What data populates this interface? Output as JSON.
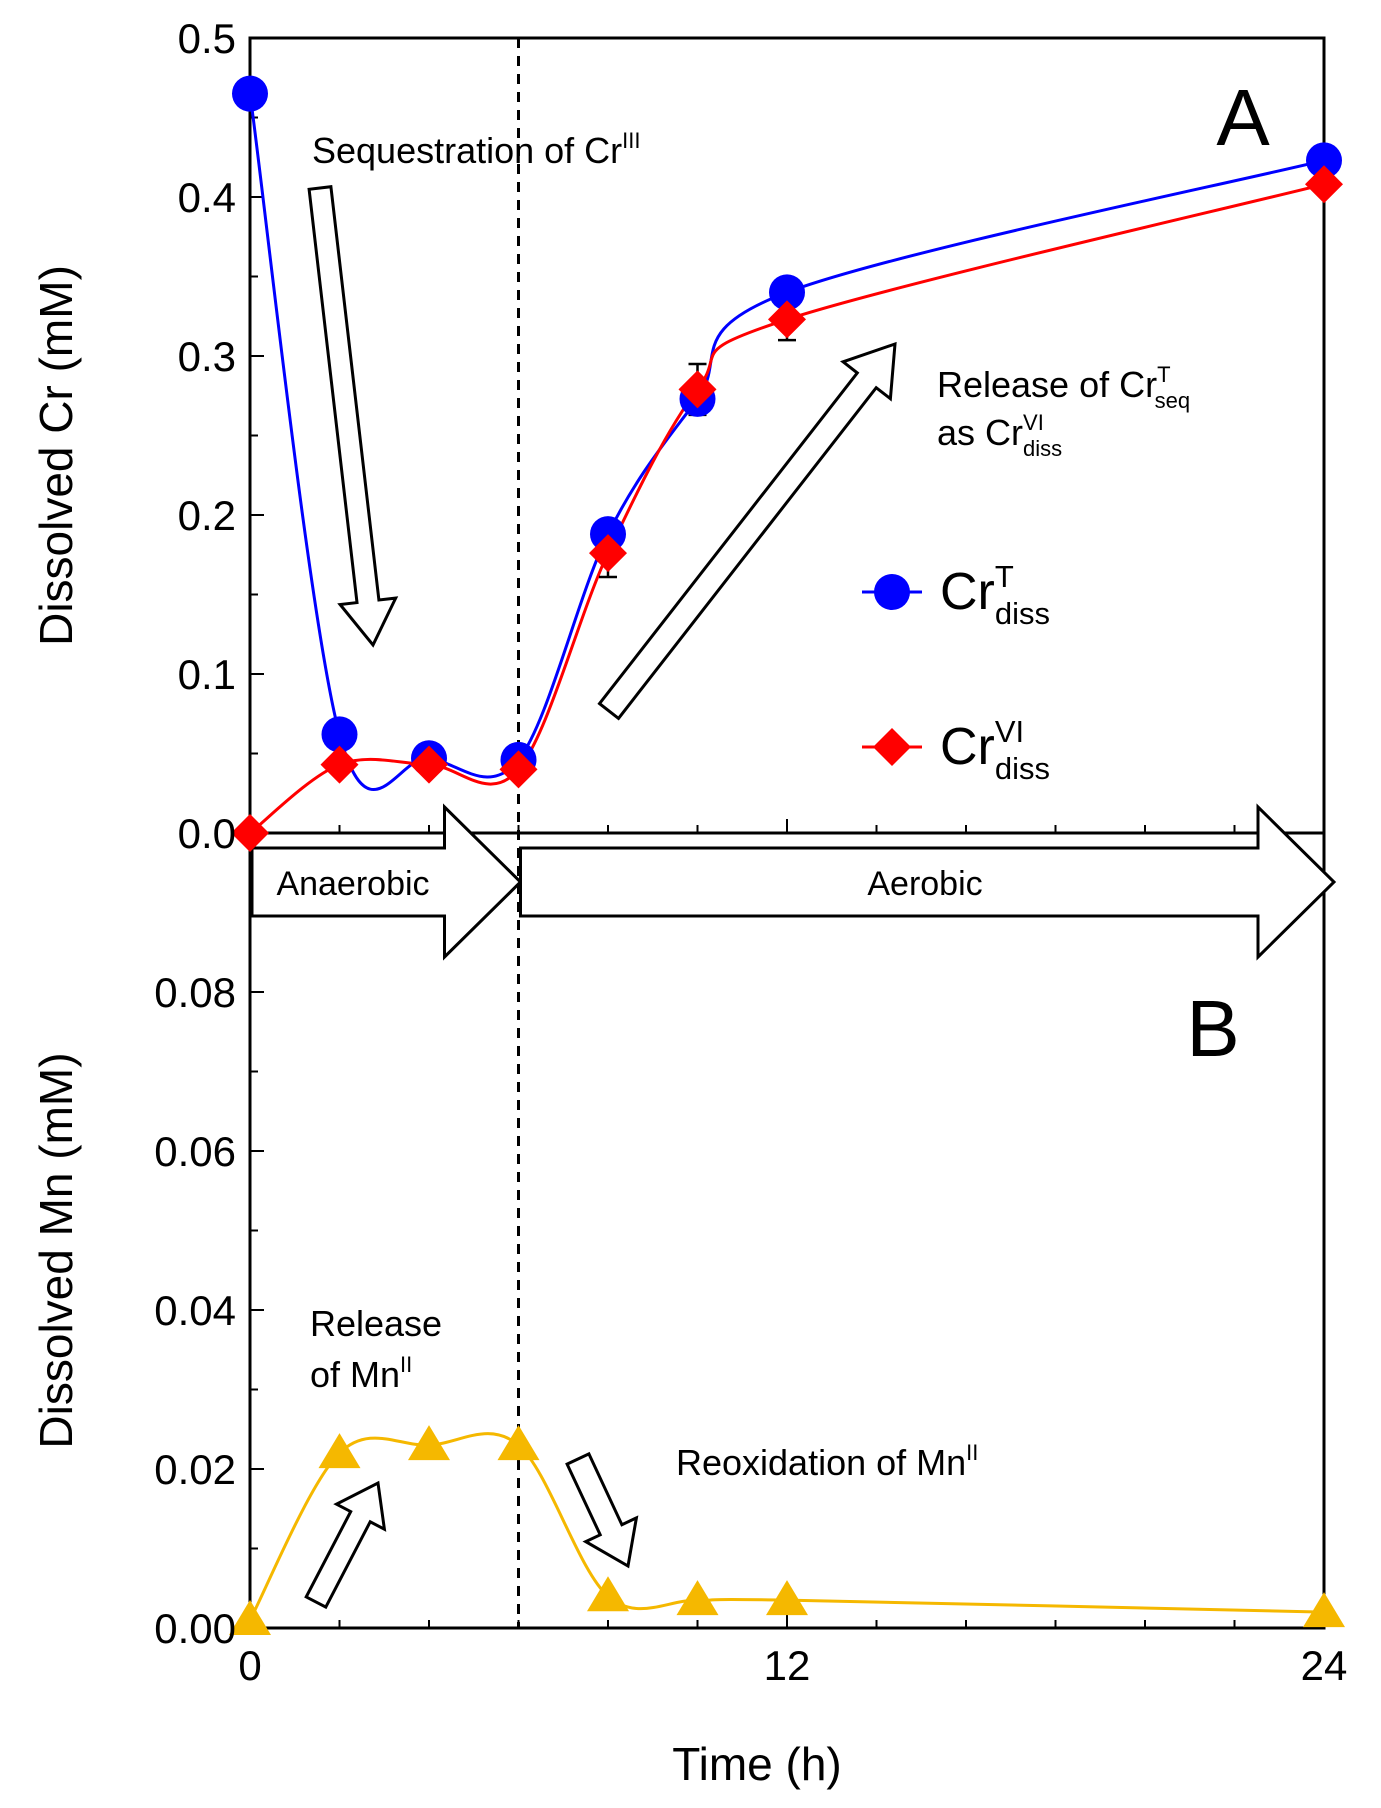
{
  "chart_data": [
    {
      "panel": "A",
      "type": "line",
      "title": "",
      "xlabel": "Time (h)",
      "ylabel": "Dissolved Cr (mM)",
      "xlim": [
        0,
        24
      ],
      "ylim": [
        0,
        0.5
      ],
      "yticks": [
        "0.0",
        "0.1",
        "0.2",
        "0.3",
        "0.4",
        "0.5"
      ],
      "series": [
        {
          "name": "CrT_diss",
          "label_main": "Cr",
          "label_sup": "T",
          "label_sub": "diss",
          "color": "#0000ff",
          "marker": "circle",
          "x": [
            0,
            2,
            4,
            6,
            8,
            10,
            12,
            24
          ],
          "values": [
            0.465,
            0.062,
            0.047,
            0.046,
            0.188,
            0.273,
            0.34,
            0.423
          ]
        },
        {
          "name": "CrVI_diss",
          "label_main": "Cr",
          "label_sup": "VI",
          "label_sub": "diss",
          "color": "#ff0000",
          "marker": "diamond",
          "x": [
            0,
            2,
            4,
            6,
            8,
            10,
            12,
            24
          ],
          "values": [
            0.0,
            0.043,
            0.043,
            0.04,
            0.176,
            0.279,
            0.323,
            0.408
          ],
          "errors": [
            0,
            0,
            0,
            0,
            0.015,
            0.016,
            0.013,
            0.005
          ]
        }
      ],
      "annotations": [
        {
          "id": "sequestration",
          "lines": [
            {
              "text": "Sequestration of Cr",
              "sup": "III"
            }
          ]
        },
        {
          "id": "release-cr",
          "lines": [
            {
              "text": "Release of Cr",
              "sup": "T",
              "sub": "seq"
            },
            {
              "text": "as Cr",
              "sup": "VI",
              "sub": "diss"
            }
          ]
        }
      ]
    },
    {
      "panel": "B",
      "type": "line",
      "title": "",
      "xlabel": "Time (h)",
      "ylabel": "Dissolved Mn (mM)",
      "xlim": [
        0,
        24
      ],
      "ylim": [
        0,
        0.1
      ],
      "xticks": [
        "0",
        "12",
        "24"
      ],
      "yticks": [
        "0.00",
        "0.02",
        "0.04",
        "0.06",
        "0.08"
      ],
      "series": [
        {
          "name": "Mn_diss",
          "color": "#f5b800",
          "marker": "triangle",
          "x": [
            0,
            2,
            4,
            6,
            8,
            10,
            12,
            24
          ],
          "values": [
            0.001,
            0.022,
            0.023,
            0.023,
            0.004,
            0.0035,
            0.0035,
            0.002
          ]
        }
      ],
      "annotations": [
        {
          "id": "release-mn",
          "lines": [
            {
              "text": "Release"
            },
            {
              "text": "of Mn",
              "sup": "II"
            }
          ]
        },
        {
          "id": "reoxidation",
          "lines": [
            {
              "text": "Reoxidation of Mn",
              "sup": "II"
            }
          ]
        }
      ]
    }
  ],
  "phases": [
    {
      "label": "Anaerobic",
      "start": 0,
      "end": 6
    },
    {
      "label": "Aerobic",
      "start": 6,
      "end": 24
    }
  ],
  "transition_time": 6,
  "panel_labels": [
    "A",
    "B"
  ]
}
